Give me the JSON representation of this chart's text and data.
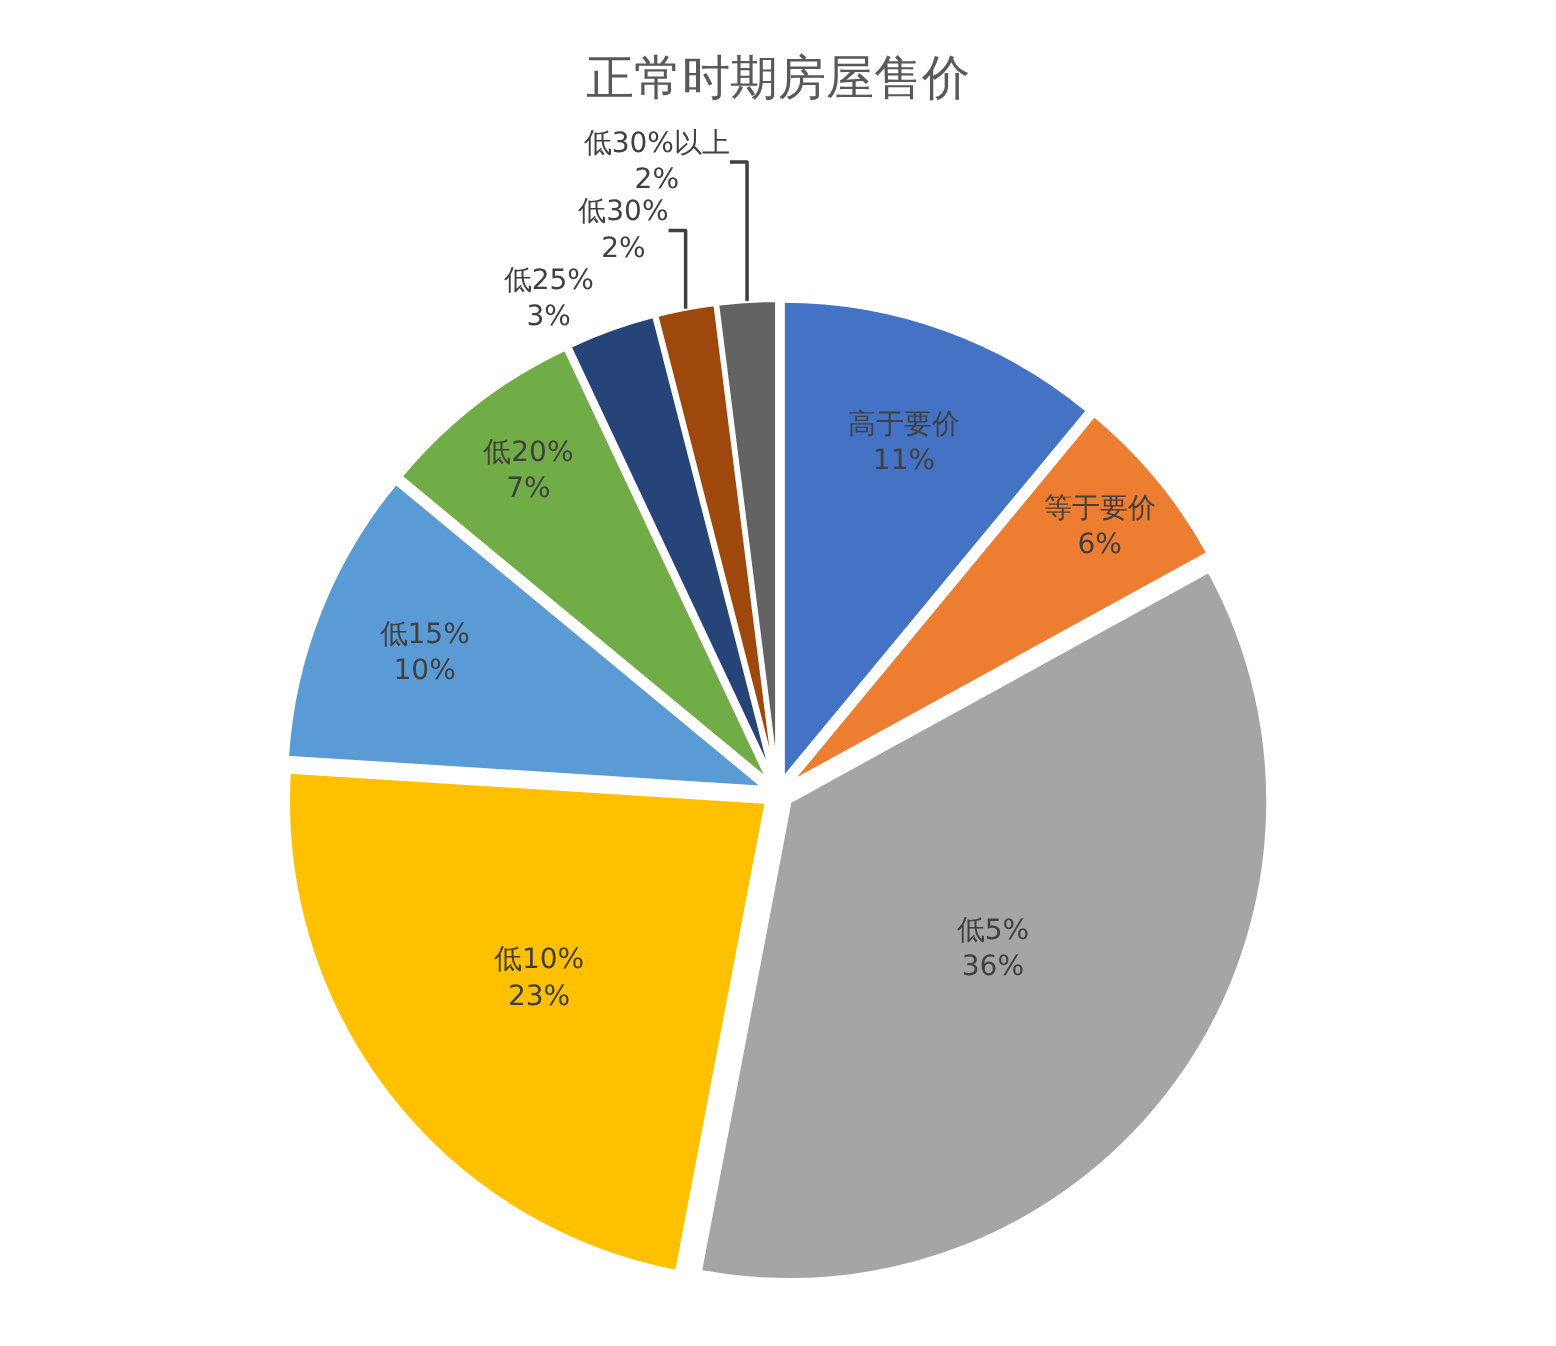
{
  "chart_data": {
    "type": "pie",
    "title": "正常时期房屋售价",
    "categories": [
      "高于要价",
      "等于要价",
      "低5%",
      "低10%",
      "低15%",
      "低20%",
      "低25%",
      "低30%",
      "低30%以上"
    ],
    "values": [
      11,
      6,
      36,
      23,
      10,
      7,
      3,
      2,
      2
    ],
    "value_labels": [
      "11%",
      "6%",
      "36%",
      "23%",
      "10%",
      "7%",
      "3%",
      "2%",
      "2%"
    ],
    "colors": [
      "#4472c4",
      "#ed7d31",
      "#a5a5a5",
      "#ffc000",
      "#5b9bd5",
      "#70ad47",
      "#264478",
      "#9e480e",
      "#636363"
    ],
    "legend": false
  }
}
